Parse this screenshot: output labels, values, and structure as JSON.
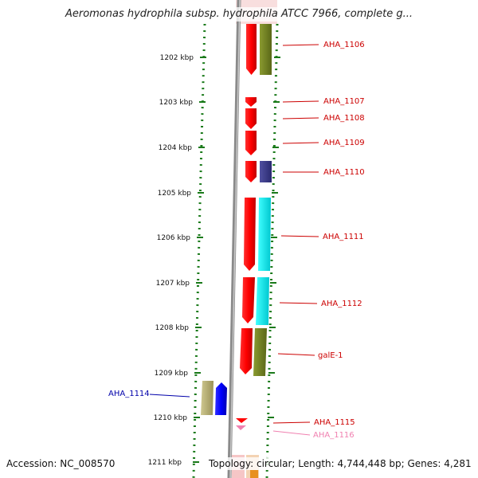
{
  "title": "Aeromonas hydrophila subsp. hydrophila ATCC 7966, complete g...",
  "accession": "Accession: NC_008570",
  "topology": "Topology: circular; Length: 4,744,448 bp; Genes: 4,281",
  "ruler": {
    "ticks": [
      "1202 kbp",
      "1203 kbp",
      "1204 kbp",
      "1205 kbp",
      "1206 kbp",
      "1207 kbp",
      "1208 kbp",
      "1209 kbp",
      "1210 kbp",
      "1211 kbp"
    ]
  },
  "genes": [
    {
      "label": "AHA_1106",
      "label_color": "#cc0000",
      "strand": "forward",
      "track_color": "#6b7a1f"
    },
    {
      "label": "AHA_1107",
      "label_color": "#cc0000",
      "strand": "forward",
      "track_color": null
    },
    {
      "label": "AHA_1108",
      "label_color": "#cc0000",
      "strand": "forward",
      "track_color": null
    },
    {
      "label": "AHA_1109",
      "label_color": "#cc0000",
      "strand": "forward",
      "track_color": null
    },
    {
      "label": "AHA_1110",
      "label_color": "#cc0000",
      "strand": "forward",
      "track_color": "#3a3a8a"
    },
    {
      "label": "AHA_1111",
      "label_color": "#cc0000",
      "strand": "forward",
      "track_color": "#00e5e5"
    },
    {
      "label": "AHA_1112",
      "label_color": "#cc0000",
      "strand": "forward",
      "track_color": "#00e5e5"
    },
    {
      "label": "galE-1",
      "label_color": "#cc0000",
      "strand": "forward",
      "track_color": "#6b7a1f"
    },
    {
      "label": "AHA_1114",
      "label_color": "#0000aa",
      "strand": "reverse",
      "track_color": "#b8b070"
    },
    {
      "label": "AHA_1115",
      "label_color": "#cc0000",
      "strand": "forward",
      "track_color": null
    },
    {
      "label": "AHA_1116",
      "label_color": "#f080b0",
      "strand": "forward",
      "track_color": null
    }
  ],
  "colors": {
    "cds_forward": "#ff0000",
    "cds_reverse": "#0000ff",
    "ruler": "#1a7a1a",
    "backbone": "#888888"
  }
}
